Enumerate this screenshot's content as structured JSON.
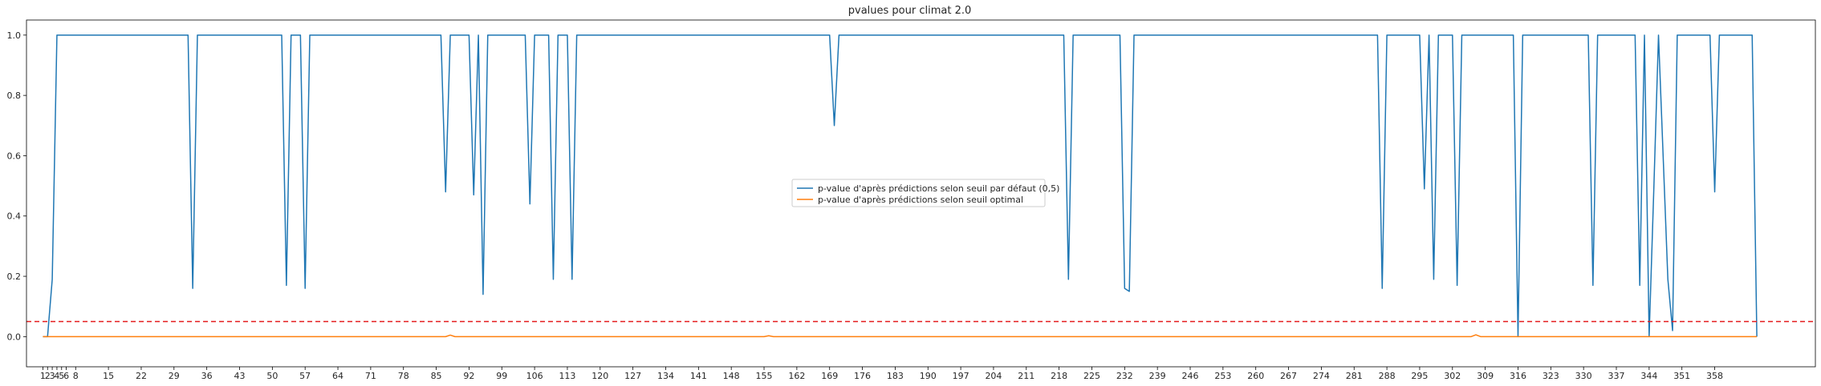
{
  "chart_data": {
    "type": "line",
    "title": "pvalues pour climat 2.0",
    "xlabel": "",
    "ylabel": "",
    "xlim": [
      -2.5,
      379.5
    ],
    "ylim": [
      -0.1,
      1.05
    ],
    "x_ticks": [
      1,
      2,
      3,
      4,
      5,
      6,
      8,
      15,
      22,
      29,
      36,
      43,
      50,
      57,
      64,
      71,
      78,
      85,
      92,
      99,
      106,
      113,
      120,
      127,
      134,
      141,
      148,
      155,
      162,
      169,
      176,
      183,
      190,
      197,
      204,
      211,
      218,
      225,
      232,
      239,
      246,
      253,
      260,
      267,
      274,
      281,
      288,
      295,
      302,
      309,
      316,
      323,
      330,
      337,
      344,
      351,
      358
    ],
    "y_ticks": [
      0.0,
      0.2,
      0.4,
      0.6,
      0.8,
      1.0
    ],
    "y_tick_labels": [
      "0.0",
      "0.2",
      "0.4",
      "0.6",
      "0.8",
      "1.0"
    ],
    "legend_position": "center",
    "grid": false,
    "threshold_line": {
      "y": 0.05,
      "color": "#e41a1c",
      "style": "dashed"
    },
    "series": [
      {
        "name": "p-value d'après prédictions selon seuil par défaut (0,5)",
        "color": "#1f77b4",
        "points": [
          [
            1,
            0.0
          ],
          [
            2,
            0.0
          ],
          [
            3,
            0.19
          ],
          [
            4,
            1.0
          ],
          [
            32,
            1.0
          ],
          [
            33,
            0.16
          ],
          [
            34,
            1.0
          ],
          [
            52,
            1.0
          ],
          [
            53,
            0.17
          ],
          [
            54,
            1.0
          ],
          [
            56,
            1.0
          ],
          [
            57,
            0.16
          ],
          [
            58,
            1.0
          ],
          [
            86,
            1.0
          ],
          [
            87,
            0.48
          ],
          [
            88,
            1.0
          ],
          [
            92,
            1.0
          ],
          [
            93,
            0.47
          ],
          [
            94,
            1.0
          ],
          [
            95,
            0.14
          ],
          [
            96,
            1.0
          ],
          [
            104,
            1.0
          ],
          [
            105,
            0.44
          ],
          [
            106,
            1.0
          ],
          [
            109,
            1.0
          ],
          [
            110,
            0.19
          ],
          [
            111,
            1.0
          ],
          [
            113,
            1.0
          ],
          [
            114,
            0.19
          ],
          [
            115,
            1.0
          ],
          [
            169,
            1.0
          ],
          [
            170,
            0.7
          ],
          [
            171,
            1.0
          ],
          [
            219,
            1.0
          ],
          [
            220,
            0.19
          ],
          [
            221,
            1.0
          ],
          [
            231,
            1.0
          ],
          [
            232,
            0.16
          ],
          [
            233,
            0.15
          ],
          [
            234,
            1.0
          ],
          [
            286,
            1.0
          ],
          [
            287,
            0.16
          ],
          [
            288,
            1.0
          ],
          [
            295,
            1.0
          ],
          [
            296,
            0.49
          ],
          [
            297,
            1.0
          ],
          [
            298,
            0.19
          ],
          [
            299,
            1.0
          ],
          [
            302,
            1.0
          ],
          [
            303,
            0.17
          ],
          [
            304,
            1.0
          ],
          [
            315,
            1.0
          ],
          [
            316,
            0.0
          ],
          [
            317,
            1.0
          ],
          [
            331,
            1.0
          ],
          [
            332,
            0.17
          ],
          [
            333,
            1.0
          ],
          [
            341,
            1.0
          ],
          [
            342,
            0.17
          ],
          [
            343,
            1.0
          ],
          [
            344,
            0.0
          ],
          [
            345,
            0.49
          ],
          [
            346,
            1.0
          ],
          [
            348,
            0.19
          ],
          [
            349,
            0.02
          ],
          [
            350,
            1.0
          ],
          [
            357,
            1.0
          ],
          [
            358,
            0.48
          ],
          [
            359,
            1.0
          ],
          [
            366,
            1.0
          ],
          [
            367,
            0.0
          ]
        ]
      },
      {
        "name": "p-value d'après prédictions selon seuil optimal",
        "color": "#ff7f0e",
        "points": [
          [
            1,
            0.0
          ],
          [
            87,
            0.0
          ],
          [
            88,
            0.005
          ],
          [
            89,
            0.0
          ],
          [
            155,
            0.0
          ],
          [
            156,
            0.003
          ],
          [
            157,
            0.0
          ],
          [
            306,
            0.0
          ],
          [
            307,
            0.006
          ],
          [
            308,
            0.0
          ],
          [
            367,
            0.0
          ]
        ]
      }
    ]
  }
}
